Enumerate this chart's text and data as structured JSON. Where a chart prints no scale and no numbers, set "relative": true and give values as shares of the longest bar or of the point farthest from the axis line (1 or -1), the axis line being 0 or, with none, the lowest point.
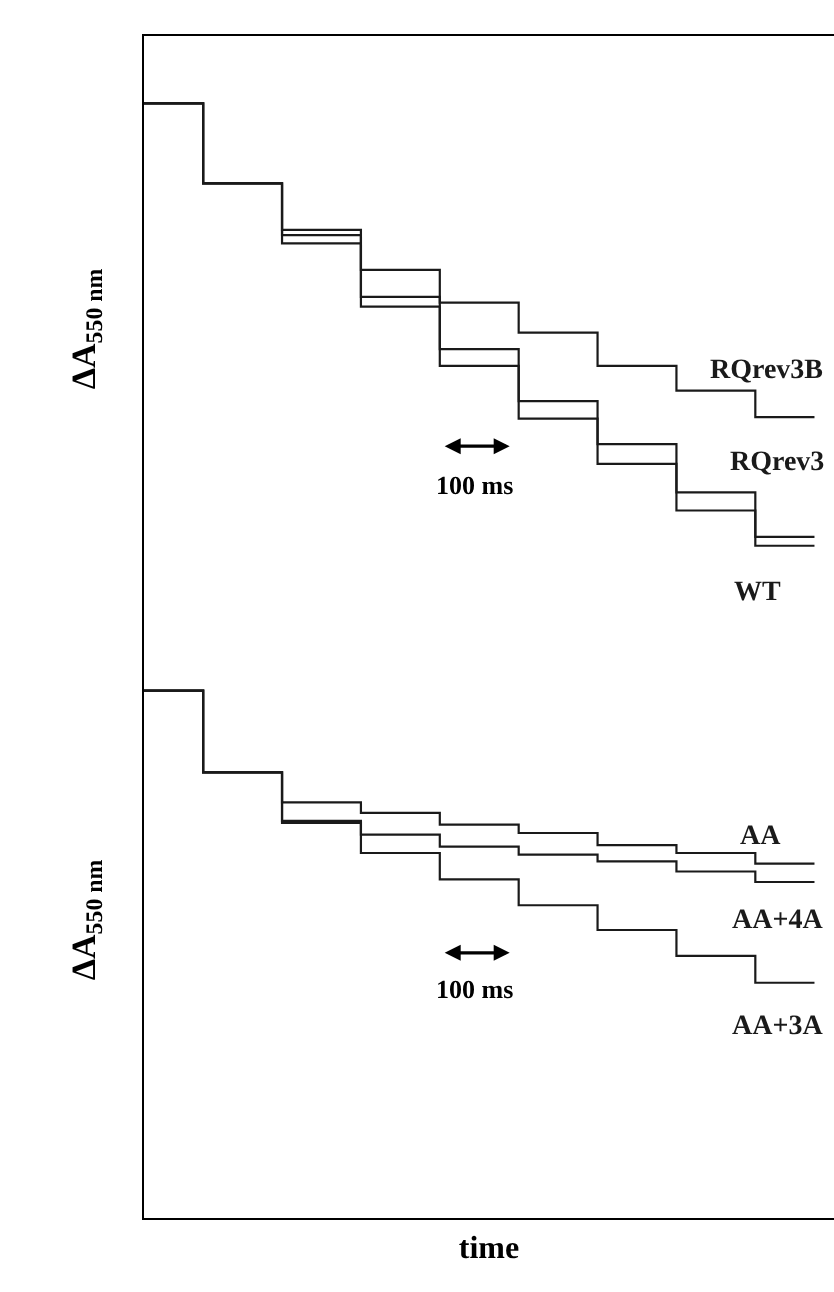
{
  "chart_data": [
    {
      "type": "step",
      "relative": true,
      "ylabel": "ΔA$_{550 nm}$",
      "tick_labels": false,
      "legend": false,
      "grid": false,
      "marker": "none",
      "annotations": [
        "100 ms"
      ],
      "categories": [
        null,
        null,
        null,
        null,
        null,
        null,
        null,
        null,
        null,
        null,
        null,
        null,
        null,
        null,
        null,
        null,
        null,
        null,
        null,
        null,
        null,
        null,
        null,
        null,
        null,
        null,
        null,
        null,
        null,
        null,
        null,
        null,
        null,
        null,
        null
      ],
      "series": [
        {
          "name": "RQrev3B",
          "color": "#1a1a1a",
          "values": [
            1.0,
            1.0,
            1.0,
            0.846,
            0.846,
            0.846,
            0.846,
            0.756,
            0.756,
            0.756,
            0.756,
            0.679,
            0.679,
            0.679,
            0.679,
            0.616,
            0.616,
            0.616,
            0.616,
            0.558,
            0.558,
            0.558,
            0.558,
            0.494,
            0.494,
            0.494,
            0.494,
            0.446,
            0.446,
            0.446,
            0.446,
            0.395,
            0.395,
            0.395,
            0.395
          ]
        },
        {
          "name": "RQrev3",
          "color": "#1a1a1a",
          "values": [
            1.0,
            1.0,
            1.0,
            0.846,
            0.846,
            0.846,
            0.846,
            0.746,
            0.746,
            0.746,
            0.746,
            0.627,
            0.627,
            0.627,
            0.627,
            0.526,
            0.526,
            0.526,
            0.526,
            0.426,
            0.426,
            0.426,
            0.426,
            0.343,
            0.343,
            0.343,
            0.343,
            0.25,
            0.25,
            0.25,
            0.25,
            0.164,
            0.164,
            0.164,
            0.164
          ]
        },
        {
          "name": "WT",
          "color": "#1a1a1a",
          "values": [
            1.0,
            1.0,
            1.0,
            0.846,
            0.846,
            0.846,
            0.846,
            0.73,
            0.73,
            0.73,
            0.73,
            0.608,
            0.608,
            0.608,
            0.608,
            0.494,
            0.494,
            0.494,
            0.494,
            0.392,
            0.392,
            0.392,
            0.392,
            0.305,
            0.305,
            0.305,
            0.305,
            0.215,
            0.215,
            0.215,
            0.215,
            0.147,
            0.147,
            0.147,
            0.147
          ]
        }
      ]
    },
    {
      "type": "step",
      "relative": true,
      "ylabel": "ΔA$_{550 nm}$",
      "xlabel": "time",
      "tick_labels": false,
      "legend": false,
      "grid": false,
      "marker": "none",
      "annotations": [
        "100 ms"
      ],
      "categories": [
        null,
        null,
        null,
        null,
        null,
        null,
        null,
        null,
        null,
        null,
        null,
        null,
        null,
        null,
        null,
        null,
        null,
        null,
        null,
        null,
        null,
        null,
        null,
        null,
        null,
        null,
        null,
        null,
        null,
        null,
        null,
        null,
        null,
        null,
        null
      ],
      "series": [
        {
          "name": "AA",
          "color": "#1a1a1a",
          "values": [
            1.0,
            1.0,
            1.0,
            0.845,
            0.845,
            0.845,
            0.845,
            0.788,
            0.788,
            0.788,
            0.788,
            0.768,
            0.768,
            0.768,
            0.768,
            0.746,
            0.746,
            0.746,
            0.746,
            0.73,
            0.73,
            0.73,
            0.73,
            0.707,
            0.707,
            0.707,
            0.707,
            0.692,
            0.692,
            0.692,
            0.692,
            0.672,
            0.672,
            0.672,
            0.672
          ]
        },
        {
          "name": "AA+4A",
          "color": "#1a1a1a",
          "values": [
            1.0,
            1.0,
            1.0,
            0.845,
            0.845,
            0.845,
            0.845,
            0.753,
            0.753,
            0.753,
            0.753,
            0.727,
            0.727,
            0.727,
            0.727,
            0.704,
            0.704,
            0.704,
            0.704,
            0.689,
            0.689,
            0.689,
            0.689,
            0.676,
            0.676,
            0.676,
            0.676,
            0.657,
            0.657,
            0.657,
            0.657,
            0.637,
            0.637,
            0.637,
            0.637
          ]
        },
        {
          "name": "AA+3A",
          "color": "#1a1a1a",
          "values": [
            1.0,
            1.0,
            1.0,
            0.845,
            0.845,
            0.845,
            0.845,
            0.749,
            0.749,
            0.749,
            0.749,
            0.692,
            0.692,
            0.692,
            0.692,
            0.642,
            0.642,
            0.642,
            0.642,
            0.593,
            0.593,
            0.593,
            0.593,
            0.546,
            0.546,
            0.546,
            0.546,
            0.497,
            0.497,
            0.497,
            0.497,
            0.446,
            0.446,
            0.446,
            0.446
          ]
        }
      ]
    }
  ]
}
